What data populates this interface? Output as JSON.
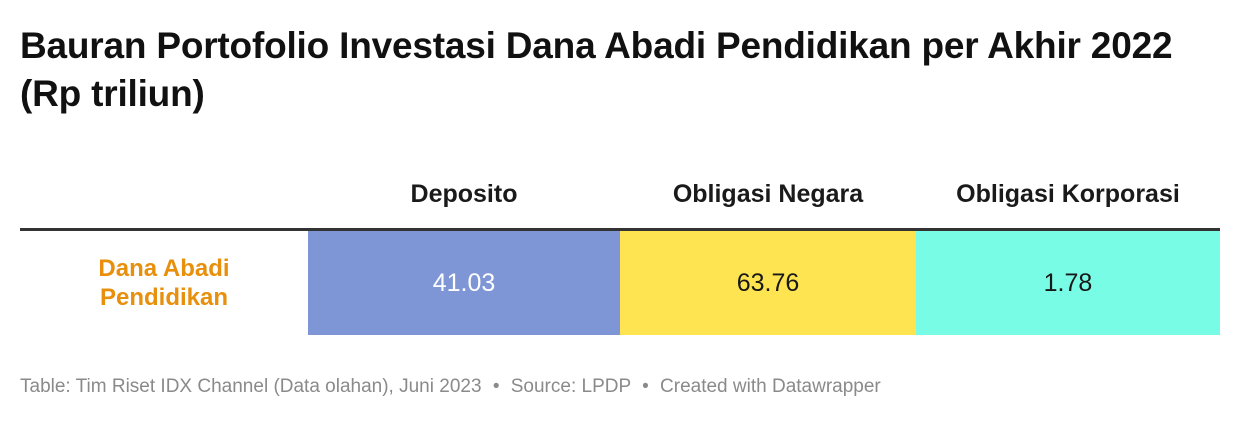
{
  "title": "Bauran Portofolio Investasi Dana Abadi Pendidikan per Akhir 2022 (Rp triliun)",
  "colors": {
    "deposito": "#7f96d6",
    "obligasi_negara": "#fee451",
    "obligasi_korporasi": "#79fce5",
    "row_label": "#e8900d",
    "deposito_text": "#ffffff",
    "dark_text": "#181818"
  },
  "chart_data": {
    "type": "table",
    "title": "Bauran Portofolio Investasi Dana Abadi Pendidikan per Akhir 2022 (Rp triliun)",
    "columns": [
      "Deposito",
      "Obligasi Negara",
      "Obligasi Korporasi"
    ],
    "rows": [
      {
        "label": "Dana Abadi Pendidikan",
        "values": [
          "41.03",
          "63.76",
          "1.78"
        ]
      }
    ]
  },
  "footer": {
    "table_credit": "Table: Tim Riset IDX Channel (Data olahan), Juni 2023",
    "separator": "•",
    "source": "Source: LPDP",
    "created_with": "Created with Datawrapper"
  }
}
